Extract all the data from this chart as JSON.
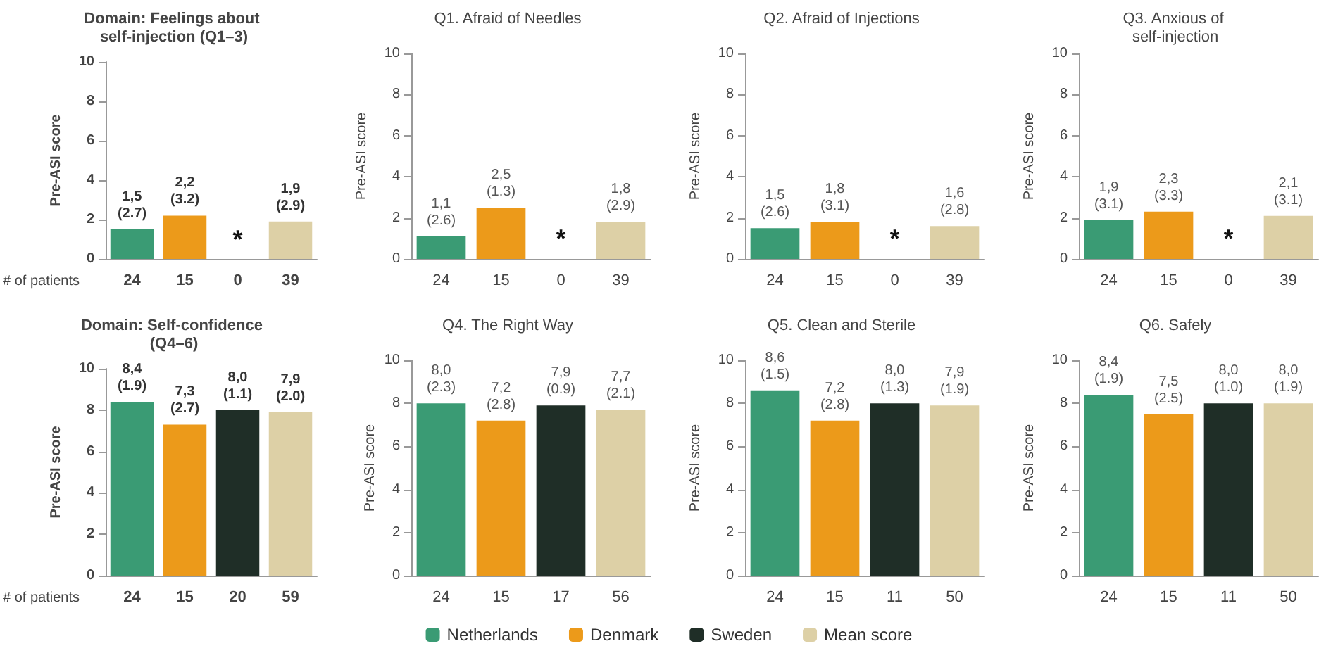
{
  "chart_data": [
    {
      "type": "bar",
      "title": "Domain: Feelings about self-injection (Q1–3)",
      "ylabel": "Pre-ASI score",
      "xlabel": "# of patients",
      "categories": [
        "24",
        "15",
        "0",
        "39"
      ],
      "ylim": [
        0,
        10
      ],
      "yticks": [
        0,
        2,
        4,
        6,
        8,
        10
      ],
      "annotations": [
        "*"
      ],
      "series": [
        {
          "color": "#3a9b74",
          "values": [
            1.5,
            null,
            null,
            null
          ],
          "value_labels": [
            "1,5\n(2.7)",
            null,
            null,
            null
          ]
        },
        {
          "color": "#ec9a1a",
          "values": [
            null,
            2.2,
            null,
            null
          ],
          "value_labels": [
            null,
            "2,2\n(3.2)",
            null,
            null
          ]
        },
        {
          "color": "#ddd0a6",
          "values": [
            null,
            null,
            null,
            1.9
          ],
          "value_labels": [
            null,
            null,
            null,
            "1,9\n(2.9)"
          ]
        }
      ]
    },
    {
      "type": "bar",
      "title": "Q1. Afraid of Needles",
      "ylabel": "Pre-ASI score",
      "categories": [
        "24",
        "15",
        "0",
        "39"
      ],
      "ylim": [
        0,
        10
      ],
      "yticks": [
        0,
        2,
        4,
        6,
        8,
        10
      ],
      "annotations": [
        "*"
      ],
      "series": [
        {
          "color": "#3a9b74",
          "values": [
            1.1,
            null,
            null,
            null
          ],
          "value_labels": [
            "1,1\n(2.6)",
            null,
            null,
            null
          ]
        },
        {
          "color": "#ec9a1a",
          "values": [
            null,
            2.5,
            null,
            null
          ],
          "value_labels": [
            null,
            "2,5\n(1.3)",
            null,
            null
          ]
        },
        {
          "color": "#ddd0a6",
          "values": [
            null,
            null,
            null,
            1.8
          ],
          "value_labels": [
            null,
            null,
            null,
            "1,8\n(2.9)"
          ]
        }
      ]
    },
    {
      "type": "bar",
      "title": "Q2. Afraid of Injections",
      "ylabel": "Pre-ASI score",
      "categories": [
        "24",
        "15",
        "0",
        "39"
      ],
      "ylim": [
        0,
        10
      ],
      "yticks": [
        0,
        2,
        4,
        6,
        8,
        10
      ],
      "annotations": [
        "*"
      ],
      "series": [
        {
          "color": "#3a9b74",
          "values": [
            1.5,
            null,
            null,
            null
          ],
          "value_labels": [
            "1,5\n(2.6)",
            null,
            null,
            null
          ]
        },
        {
          "color": "#ec9a1a",
          "values": [
            null,
            1.8,
            null,
            null
          ],
          "value_labels": [
            null,
            "1,8\n(3.1)",
            null,
            null
          ]
        },
        {
          "color": "#ddd0a6",
          "values": [
            null,
            null,
            null,
            1.6
          ],
          "value_labels": [
            null,
            null,
            null,
            "1,6\n(2.8)"
          ]
        }
      ]
    },
    {
      "type": "bar",
      "title": "Q3. Anxious of self-injection",
      "ylabel": "Pre-ASI score",
      "categories": [
        "24",
        "15",
        "0",
        "39"
      ],
      "ylim": [
        0,
        10
      ],
      "yticks": [
        0,
        2,
        4,
        6,
        8,
        10
      ],
      "annotations": [
        "*"
      ],
      "series": [
        {
          "color": "#3a9b74",
          "values": [
            1.9,
            null,
            null,
            null
          ],
          "value_labels": [
            "1,9\n(3.1)",
            null,
            null,
            null
          ]
        },
        {
          "color": "#ec9a1a",
          "values": [
            null,
            2.3,
            null,
            null
          ],
          "value_labels": [
            null,
            "2,3\n(3.3)",
            null,
            null
          ]
        },
        {
          "color": "#ddd0a6",
          "values": [
            null,
            null,
            null,
            2.1
          ],
          "value_labels": [
            null,
            null,
            null,
            "2,1\n(3.1)"
          ]
        }
      ]
    },
    {
      "type": "bar",
      "title": "Domain: Self-confidence (Q4–6)",
      "ylabel": "Pre-ASI score",
      "xlabel": "# of patients",
      "categories": [
        "24",
        "15",
        "20",
        "59"
      ],
      "ylim": [
        0,
        10
      ],
      "yticks": [
        0,
        2,
        4,
        6,
        8,
        10
      ],
      "series": [
        {
          "color": "#3a9b74",
          "values": [
            8.4,
            null,
            null,
            null
          ],
          "value_labels": [
            "8,4\n(1.9)",
            null,
            null,
            null
          ]
        },
        {
          "color": "#ec9a1a",
          "values": [
            null,
            7.3,
            null,
            null
          ],
          "value_labels": [
            null,
            "7,3\n(2.7)",
            null,
            null
          ]
        },
        {
          "color": "#1f2e27",
          "values": [
            null,
            null,
            8.0,
            null
          ],
          "value_labels": [
            null,
            null,
            "8,0\n(1.1)",
            null
          ]
        },
        {
          "color": "#ddd0a6",
          "values": [
            null,
            null,
            null,
            7.9
          ],
          "value_labels": [
            null,
            null,
            null,
            "7,9\n(2.0)"
          ]
        }
      ]
    },
    {
      "type": "bar",
      "title": "Q4. The Right Way",
      "ylabel": "Pre-ASI score",
      "categories": [
        "24",
        "15",
        "17",
        "56"
      ],
      "ylim": [
        0,
        10
      ],
      "yticks": [
        0,
        2,
        4,
        6,
        8,
        10
      ],
      "legend": "bottom",
      "series": [
        {
          "name": "Netherlands",
          "color": "#3a9b74",
          "values": [
            8.0,
            null,
            null,
            null
          ],
          "value_labels": [
            "8,0\n(2.3)",
            null,
            null,
            null
          ]
        },
        {
          "name": "Denmark",
          "color": "#ec9a1a",
          "values": [
            null,
            7.2,
            null,
            null
          ],
          "value_labels": [
            null,
            "7,2\n(2.8)",
            null,
            null
          ]
        },
        {
          "name": "Sweden",
          "color": "#1f2e27",
          "values": [
            null,
            null,
            7.9,
            null
          ],
          "value_labels": [
            null,
            null,
            "7,9\n(0.9)",
            null
          ]
        },
        {
          "name": "Mean score",
          "color": "#ddd0a6",
          "values": [
            null,
            null,
            null,
            7.7
          ],
          "value_labels": [
            null,
            null,
            null,
            "7,7\n(2.1)"
          ]
        }
      ]
    },
    {
      "type": "bar",
      "title": "Q5. Clean and Sterile",
      "ylabel": "Pre-ASI score",
      "categories": [
        "24",
        "15",
        "11",
        "50"
      ],
      "ylim": [
        0,
        10
      ],
      "yticks": [
        0,
        2,
        4,
        6,
        8,
        10
      ],
      "series": [
        {
          "color": "#3a9b74",
          "values": [
            8.6,
            null,
            null,
            null
          ],
          "value_labels": [
            "8,6\n(1.5)",
            null,
            null,
            null
          ]
        },
        {
          "color": "#ec9a1a",
          "values": [
            null,
            7.2,
            null,
            null
          ],
          "value_labels": [
            null,
            "7,2\n(2.8)",
            null,
            null
          ]
        },
        {
          "color": "#1f2e27",
          "values": [
            null,
            null,
            8.0,
            null
          ],
          "value_labels": [
            null,
            null,
            "8,0\n(1.3)",
            null
          ]
        },
        {
          "color": "#ddd0a6",
          "values": [
            null,
            null,
            null,
            7.9
          ],
          "value_labels": [
            null,
            null,
            null,
            "7,9\n(1.9)"
          ]
        }
      ]
    },
    {
      "type": "bar",
      "title": "Q6. Safely",
      "ylabel": "Pre-ASI score",
      "categories": [
        "24",
        "15",
        "11",
        "50"
      ],
      "ylim": [
        0,
        10
      ],
      "yticks": [
        0,
        2,
        4,
        6,
        8,
        10
      ],
      "series": [
        {
          "color": "#3a9b74",
          "values": [
            8.4,
            null,
            null,
            null
          ],
          "value_labels": [
            "8,4\n(1.9)",
            null,
            null,
            null
          ]
        },
        {
          "color": "#ec9a1a",
          "values": [
            null,
            7.5,
            null,
            null
          ],
          "value_labels": [
            null,
            "7,5\n(2.5)",
            null,
            null
          ]
        },
        {
          "color": "#1f2e27",
          "values": [
            null,
            null,
            8.0,
            null
          ],
          "value_labels": [
            null,
            null,
            "8,0\n(1.0)",
            null
          ]
        },
        {
          "color": "#ddd0a6",
          "values": [
            null,
            null,
            null,
            8.0
          ],
          "value_labels": [
            null,
            null,
            null,
            "8,0\n(1.9)"
          ]
        }
      ]
    }
  ]
}
